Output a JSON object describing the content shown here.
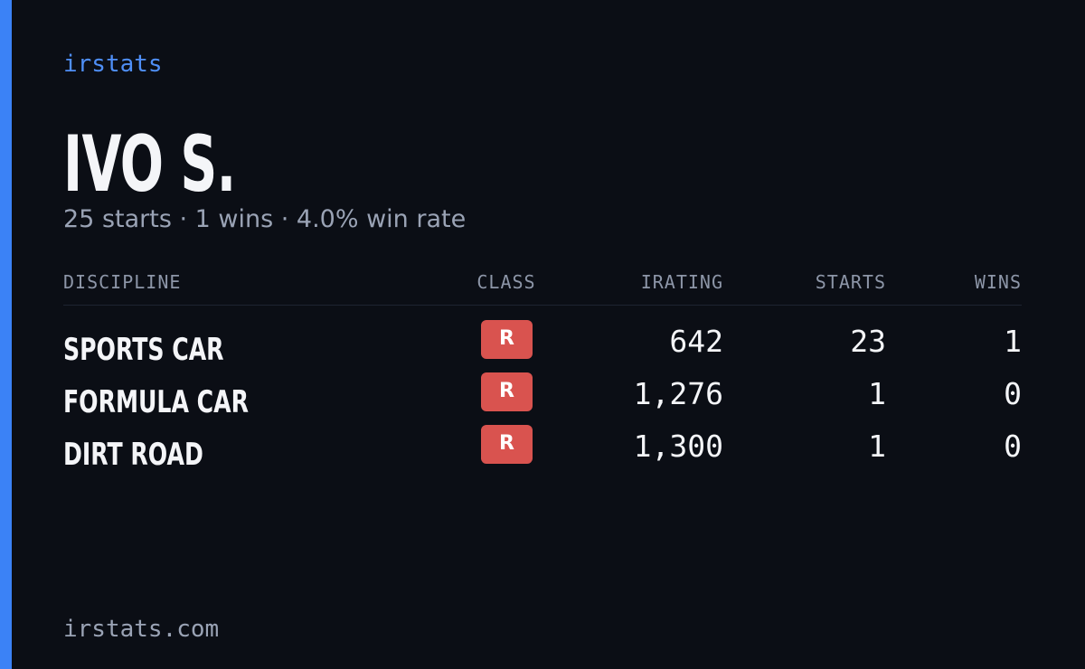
{
  "brand": "irstats",
  "driver": {
    "name": "IVO S.",
    "summary": "25 starts · 1 wins · 4.0% win rate"
  },
  "table": {
    "headers": [
      "DISCIPLINE",
      "CLASS",
      "IRATING",
      "STARTS",
      "WINS"
    ],
    "rows": [
      [
        "SPORTS CAR",
        "R",
        "642",
        "23",
        "1"
      ],
      [
        "FORMULA CAR",
        "R",
        "1,276",
        "1",
        "0"
      ],
      [
        "DIRT ROAD",
        "R",
        "1,300",
        "1",
        "0"
      ]
    ]
  },
  "footer": "irstats.com"
}
